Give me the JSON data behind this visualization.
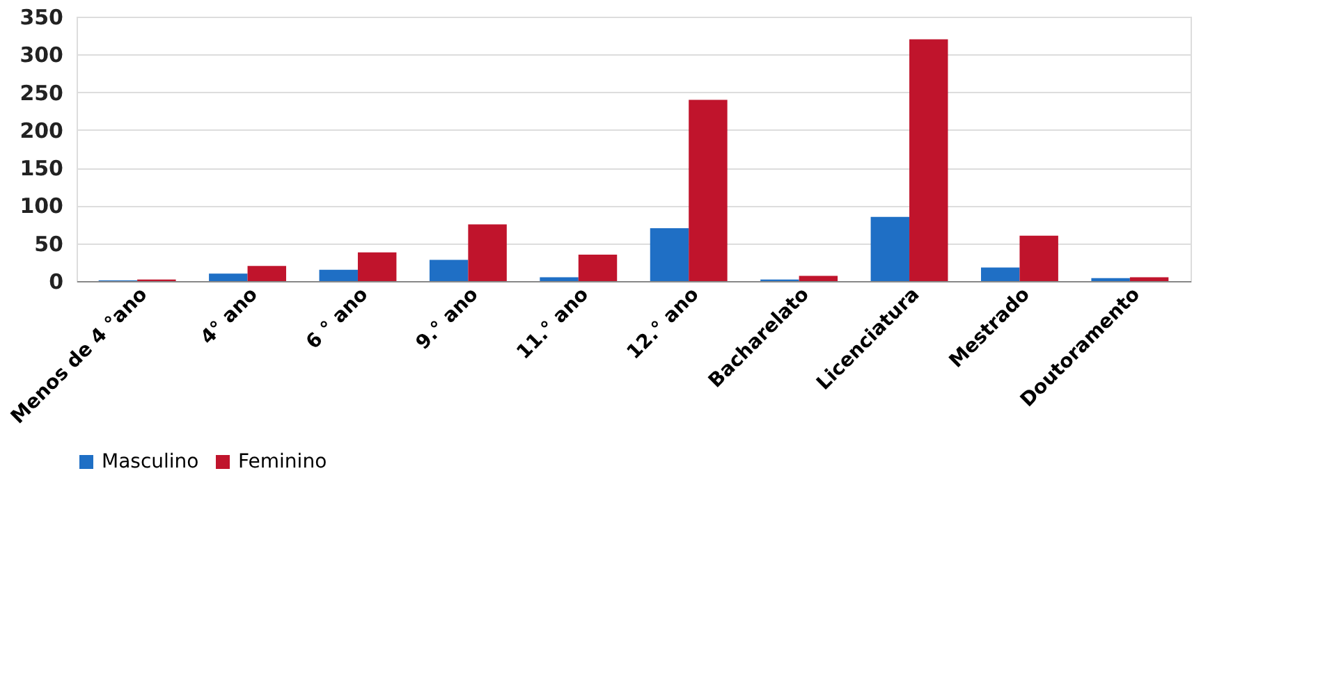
{
  "chart_data": {
    "type": "bar",
    "categories": [
      "Menos de 4 °ano",
      "4° ano",
      "6 ° ano",
      "9.° ano",
      "11.° ano",
      "12.° ano",
      "Bacharelato",
      "Licenciatura",
      "Mestrado",
      "Doutoramento"
    ],
    "series": [
      {
        "name": "Masculino",
        "color": "#1f6fc5",
        "values": [
          1,
          10,
          15,
          28,
          5,
          70,
          2,
          85,
          18,
          4
        ]
      },
      {
        "name": "Feminino",
        "color": "#c0142c",
        "values": [
          2,
          20,
          38,
          75,
          35,
          240,
          7,
          320,
          60,
          5
        ]
      }
    ],
    "ylim": [
      0,
      350
    ],
    "yticks": [
      0,
      50,
      100,
      150,
      200,
      250,
      300,
      350
    ],
    "grid": "y",
    "legend": "bottom"
  }
}
